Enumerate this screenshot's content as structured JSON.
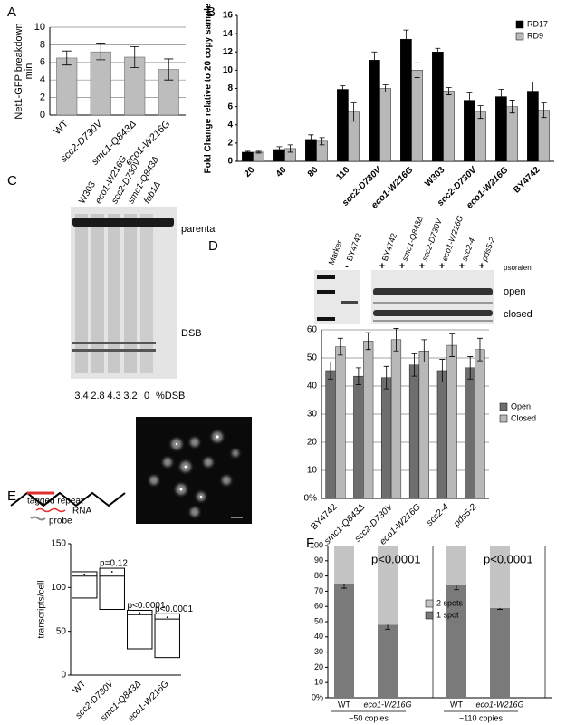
{
  "chart_data": [
    {
      "panel": "A",
      "type": "bar",
      "ylabel": [
        "Net1-GFP breakdown",
        "min"
      ],
      "categories": [
        "WT",
        "scc2-D730V",
        "smc1-Q843Δ",
        "eco1-W216G"
      ],
      "values": [
        6.5,
        7.2,
        6.6,
        5.2
      ],
      "errors": [
        0.8,
        0.9,
        1.2,
        1.2
      ],
      "color": "#bdbdbd",
      "ylim": [
        0,
        10
      ],
      "yticks": [
        0,
        2,
        4,
        6,
        8,
        10
      ],
      "grid": true
    },
    {
      "panel": "B",
      "type": "grouped_bar",
      "ylabel": [
        "Fold Change relative to 20 copy sample"
      ],
      "categories": [
        "20",
        "40",
        "80",
        "110",
        "scc2-D730V",
        "eco1-W216G",
        "W303",
        "scc2-D730V",
        "eco1-W216G",
        "BY4742"
      ],
      "series": [
        {
          "name": "RD17",
          "color": "#000000",
          "values": [
            1.0,
            1.3,
            2.4,
            7.9,
            11.1,
            13.4,
            12.0,
            6.7,
            7.1,
            7.7
          ],
          "errors": [
            0.1,
            0.3,
            0.5,
            0.4,
            0.9,
            1.0,
            0.4,
            0.8,
            0.8,
            1.0
          ]
        },
        {
          "name": "RD9",
          "color": "#b8b8b8",
          "values": [
            1.0,
            1.4,
            2.2,
            5.4,
            8.0,
            10.0,
            7.7,
            5.4,
            6.0,
            5.6
          ],
          "errors": [
            0.1,
            0.4,
            0.4,
            1.0,
            0.4,
            0.8,
            0.4,
            0.7,
            0.7,
            0.8
          ]
        }
      ],
      "ylim": [
        0,
        16
      ],
      "yticks": [
        0,
        2,
        4,
        6,
        8,
        10,
        12,
        14,
        16
      ],
      "grid": false,
      "legend": "upper right"
    },
    {
      "panel": "D",
      "type": "grouped_bar",
      "categories": [
        "BY4742",
        "smc1-Q843Δ",
        "scc2-D730V",
        "eco1-W216G",
        "scc2-4",
        "pds5-2"
      ],
      "series": [
        {
          "name": "Open",
          "color": "#6e6e6e",
          "values": [
            45.5,
            43.5,
            43,
            47.5,
            45.5,
            46.5
          ],
          "errors": [
            3,
            3,
            4,
            4,
            4,
            4
          ]
        },
        {
          "name": "Closed",
          "color": "#b8b8b8",
          "values": [
            54,
            56,
            56.5,
            52.5,
            54.5,
            53
          ],
          "errors": [
            3,
            3,
            4,
            4,
            4,
            4
          ]
        }
      ],
      "ylim": [
        0,
        60
      ],
      "yticks": [
        {
          "value": 0,
          "label": "0%"
        },
        10,
        20,
        30,
        40,
        50,
        60
      ],
      "grid": true,
      "legend": "right"
    },
    {
      "panel": "E",
      "type": "box",
      "ylabel": [
        "transcripts/cell"
      ],
      "categories": [
        "WT",
        "scc2-D730V",
        "smc1-Q843Δ",
        "eco1-W216G"
      ],
      "boxes": [
        {
          "low": 88,
          "high": 118,
          "median": 113,
          "mean": 115
        },
        {
          "low": 75,
          "high": 122,
          "median": 113,
          "mean": 118,
          "label": "p=0.12"
        },
        {
          "low": 30,
          "high": 74,
          "median": 69,
          "mean": 71,
          "label": "p<0.0001"
        },
        {
          "low": 20,
          "high": 70,
          "median": 64,
          "mean": 66,
          "label": "p<0.0001"
        }
      ],
      "ylim": [
        0,
        150
      ],
      "yticks": [
        0,
        50,
        100,
        150
      ],
      "grid": false
    },
    {
      "panel": "F",
      "type": "stacked_bar",
      "categories": [
        "WT",
        "eco1-W216G",
        "WT",
        "eco1-W216G"
      ],
      "groups": [
        "~50 copies",
        "~110 copies"
      ],
      "series": [
        {
          "name": "1 spot",
          "color": "#7a7a7a",
          "values": [
            75,
            48,
            74,
            59
          ],
          "errors": [
            3,
            3,
            3,
            1
          ]
        },
        {
          "name": "2 spots",
          "color": "#c4c4c4",
          "values": [
            25,
            52,
            26,
            41
          ]
        }
      ],
      "annotations": [
        "p<0.0001",
        "p<0.0001"
      ],
      "ylim": [
        0,
        100
      ],
      "yticks": [
        {
          "value": 0,
          "label": "0%"
        },
        10,
        20,
        30,
        40,
        50,
        60,
        70,
        80,
        90,
        100
      ],
      "grid": false,
      "legend": "center"
    }
  ],
  "gel_c": {
    "panel": "C",
    "lanes": [
      "W303",
      "eco1-W216G",
      "scc2-D730V",
      "smc1-Q843Δ",
      "fob1Δ"
    ],
    "bands": [
      "parental",
      "DSB"
    ],
    "percent_dsb": [
      3.4,
      2.8,
      4.3,
      3.2,
      0
    ],
    "percent_label": "%DSB"
  },
  "gel_d": {
    "marker": "Marker",
    "lanes": [
      "BY4742",
      "BY4742",
      "smc1-Q843Δ",
      "scc2-D730V",
      "eco1-W216G",
      "scc2-4",
      "pds5-2"
    ],
    "treatment": [
      "-",
      "+",
      "+",
      "+",
      "+",
      "+",
      "+"
    ],
    "treatment_label": "psoralen",
    "bands": [
      "open",
      "closed"
    ]
  },
  "diagram_e": {
    "labels": [
      "tagged repeat",
      "RNA",
      "probe"
    ]
  }
}
